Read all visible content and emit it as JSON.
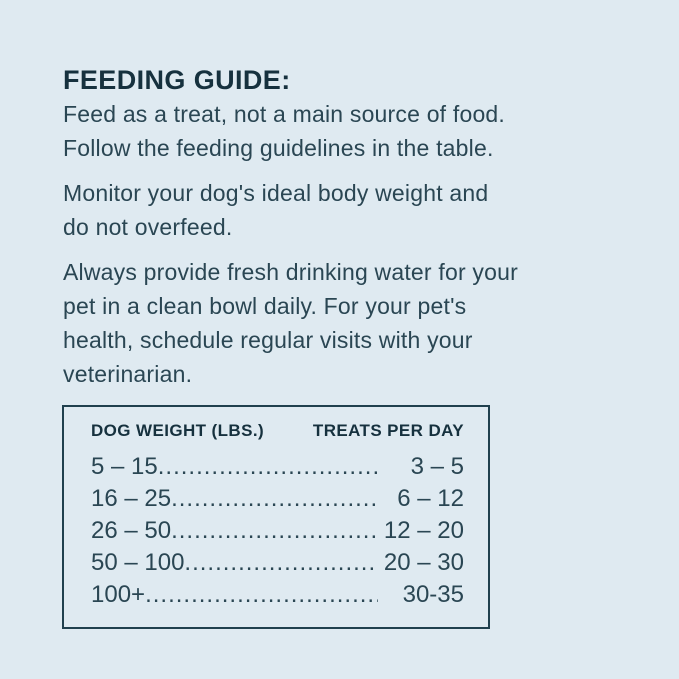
{
  "page": {
    "background_color": "#dfeaf1",
    "heading_color": "#16313e",
    "body_text_color": "#2a4653",
    "table_border_color": "#20404e"
  },
  "heading": "FEEDING GUIDE:",
  "paragraphs": [
    {
      "lines": [
        "Feed as a treat, not a main source of food.",
        "Follow the feeding guidelines in the table."
      ]
    },
    {
      "lines": [
        "Monitor your dog's ideal body weight and",
        "do not overfeed."
      ]
    },
    {
      "lines": [
        "Always provide fresh drinking water for your",
        "pet in a clean bowl daily. For your pet's",
        "health, schedule regular visits with your",
        "veterinarian."
      ]
    }
  ],
  "table": {
    "headers": {
      "weight": "DOG WEIGHT (LBS.)",
      "treats": "TREATS PER DAY"
    },
    "leader_dots": "................................................................................",
    "rows": [
      {
        "weight": "5 – 15",
        "treats": "3 – 5"
      },
      {
        "weight": "16 – 25",
        "treats": "6 – 12"
      },
      {
        "weight": "26 – 50",
        "treats": "12 – 20"
      },
      {
        "weight": "50 – 100",
        "treats": "20 – 30"
      },
      {
        "weight": "100+",
        "treats": "30-35"
      }
    ]
  }
}
